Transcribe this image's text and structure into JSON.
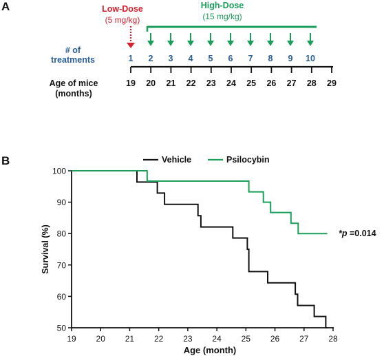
{
  "panel_a": {
    "letter": "A",
    "low_dose": {
      "title": "Low-Dose",
      "dose": "(5 mg/kg)",
      "color": "#d62030"
    },
    "high_dose": {
      "title": "High-Dose",
      "dose": "(15 mg/kg)",
      "color": "#1a9e5a"
    },
    "treatments_label": [
      "# of",
      "treatments"
    ],
    "treatments_color": "#2a5d96",
    "treatment_numbers": [
      "1",
      "2",
      "3",
      "4",
      "5",
      "6",
      "7",
      "8",
      "9",
      "10"
    ],
    "age_label": [
      "Age of mice",
      "(months)"
    ],
    "age_ticks": [
      "19",
      "20",
      "21",
      "22",
      "23",
      "24",
      "25",
      "26",
      "27",
      "28",
      "29"
    ]
  },
  "panel_b": {
    "letter": "B",
    "annotation_p": "*p",
    "annotation_value": " =0.014"
  },
  "chart_data": {
    "type": "line",
    "xlabel": "Age (month)",
    "ylabel": "Survival (%)",
    "xlim": [
      19,
      28
    ],
    "ylim": [
      50,
      100
    ],
    "xticks": [
      "19",
      "20",
      "21",
      "22",
      "23",
      "24",
      "25",
      "26",
      "27",
      "28"
    ],
    "yticks": [
      "50",
      "60",
      "70",
      "80",
      "90",
      "100"
    ],
    "legend_position": "top-center",
    "series": [
      {
        "name": "Vehicle",
        "color": "#111111",
        "x": [
          19,
          21.25,
          21.95,
          22.2,
          22.45,
          23.35,
          23.45,
          24.55,
          25.05,
          25.1,
          25.75,
          26.7,
          26.78,
          26.9,
          27.35,
          27.75,
          27.8
        ],
        "y": [
          100,
          96.4,
          92.9,
          89.3,
          89.3,
          85.7,
          82.1,
          78.6,
          75.0,
          67.9,
          64.3,
          60.7,
          57.1,
          57.1,
          53.6,
          50.0,
          50.0
        ]
      },
      {
        "name": "Psilocybin",
        "color": "#1a9e5a",
        "x": [
          19,
          21.6,
          25.1,
          25.6,
          25.85,
          26.05,
          26.55,
          26.8,
          27.8
        ],
        "y": [
          100,
          96.7,
          93.3,
          90.0,
          86.7,
          86.7,
          83.3,
          80.0,
          80.0
        ]
      }
    ]
  }
}
